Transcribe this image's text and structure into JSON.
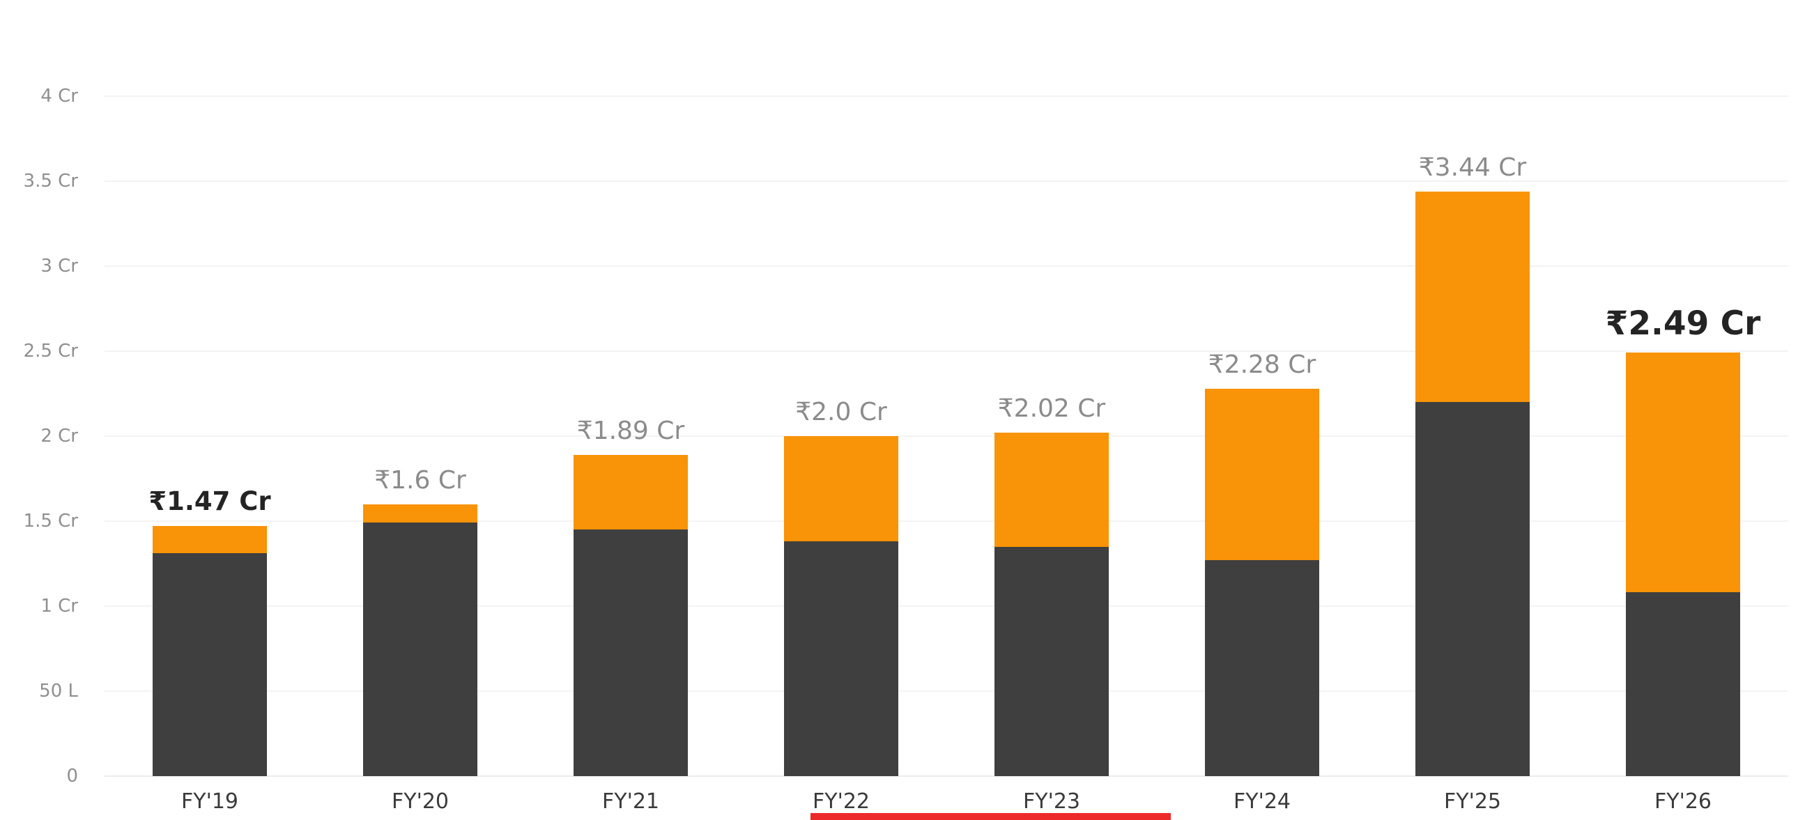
{
  "chart_data": {
    "type": "bar",
    "stacked": true,
    "title": "",
    "xlabel": "",
    "ylabel": "",
    "grid": true,
    "legend": false,
    "ylim": [
      0,
      4
    ],
    "categories": [
      "FY'19",
      "FY'20",
      "FY'21",
      "FY'22",
      "FY'23",
      "FY'24",
      "FY'25",
      "FY'26"
    ],
    "series": [
      {
        "name": "dark",
        "color": "#3f3f3f",
        "values": [
          1.31,
          1.49,
          1.45,
          1.38,
          1.35,
          1.27,
          2.2,
          1.08
        ]
      },
      {
        "name": "orange",
        "color": "#f99307",
        "values": [
          0.16,
          0.11,
          0.44,
          0.62,
          0.67,
          1.01,
          1.24,
          1.41
        ]
      }
    ],
    "totals": [
      1.47,
      1.6,
      1.89,
      2.0,
      2.02,
      2.28,
      3.44,
      2.49
    ],
    "labels": [
      "₹1.47 Cr",
      "₹1.6 Cr",
      "₹1.89 Cr",
      "₹2.0 Cr",
      "₹2.02 Cr",
      "₹2.28 Cr",
      "₹3.44 Cr",
      "₹2.49 Cr"
    ],
    "emphasis": [
      1,
      0,
      0,
      0,
      0,
      0,
      0,
      2
    ],
    "y_ticks": [
      "4 Cr",
      "3.5 Cr",
      "3 Cr",
      "2.5 Cr",
      "2 Cr",
      "1.5 Cr",
      "1 Cr",
      "50 L",
      "0"
    ],
    "y_tick_values": [
      4,
      3.5,
      3,
      2.5,
      2,
      1.5,
      1,
      0.5,
      0
    ]
  },
  "colors": {
    "background": "#ffffff",
    "gridline": "#f3f3f3",
    "axis_text": "#8f8f8f",
    "category_text": "#3a3a3a",
    "value_label": "#8b8b8b",
    "value_label_emphasis": "#242424",
    "bar_dark": "#3f3f3f",
    "bar_orange": "#f99307",
    "red_strip": "#ee2b2b"
  }
}
